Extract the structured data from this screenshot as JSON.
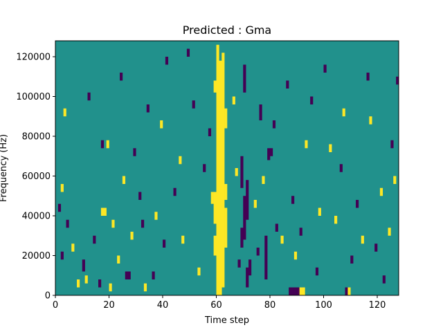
{
  "chart_data": {
    "type": "heatmap",
    "title": "Predicted : Gma",
    "xlabel": "Time step",
    "ylabel": "Frequency (Hz)",
    "xlim": [
      0,
      128
    ],
    "ylim": [
      0,
      128000
    ],
    "x_ticks": [
      0,
      20,
      40,
      60,
      80,
      100,
      120
    ],
    "y_ticks": [
      0,
      20000,
      40000,
      60000,
      80000,
      100000,
      120000
    ],
    "x_tick_labels": [
      "0",
      "20",
      "40",
      "60",
      "80",
      "100",
      "120"
    ],
    "y_tick_labels": [
      "0",
      "20000",
      "40000",
      "60000",
      "80000",
      "100000",
      "120000"
    ],
    "n_time_steps": 128,
    "n_freq_bins": 64,
    "freq_bin_width_hz": 2000,
    "color_levels": [
      "#440154",
      "#21918c",
      "#fde725"
    ],
    "value_scale": "-1 = low (dark purple), 0 = baseline (teal), 1 = high (yellow)",
    "background_value": 0,
    "cells_note": "Listed cells deviate from baseline; unlisted cells are 0.",
    "cells": [
      {
        "t": 60,
        "f0": 0,
        "f1": 126000,
        "v": 1
      },
      {
        "t": 61,
        "f0": 0,
        "f1": 118000,
        "v": 1
      },
      {
        "t": 62,
        "f0": 4000,
        "f1": 122000,
        "v": 1
      },
      {
        "t": 63,
        "f0": 24000,
        "f1": 44000,
        "v": 1
      },
      {
        "t": 63,
        "f0": 48000,
        "f1": 56000,
        "v": 1
      },
      {
        "t": 63,
        "f0": 84000,
        "f1": 94000,
        "v": 1
      },
      {
        "t": 59,
        "f0": 20000,
        "f1": 30000,
        "v": 1
      },
      {
        "t": 59,
        "f0": 36000,
        "f1": 52000,
        "v": 1
      },
      {
        "t": 59,
        "f0": 102000,
        "f1": 108000,
        "v": 1
      },
      {
        "t": 58,
        "f0": 46000,
        "f1": 52000,
        "v": 1
      },
      {
        "t": 68,
        "f0": 14000,
        "f1": 18000,
        "v": -1
      },
      {
        "t": 69,
        "f0": 24000,
        "f1": 34000,
        "v": -1
      },
      {
        "t": 69,
        "f0": 54000,
        "f1": 70000,
        "v": -1
      },
      {
        "t": 70,
        "f0": 28000,
        "f1": 50000,
        "v": -1
      },
      {
        "t": 70,
        "f0": 102000,
        "f1": 116000,
        "v": -1
      },
      {
        "t": 71,
        "f0": 4000,
        "f1": 14000,
        "v": -1
      },
      {
        "t": 71,
        "f0": 38000,
        "f1": 58000,
        "v": -1
      },
      {
        "t": 72,
        "f0": 10000,
        "f1": 18000,
        "v": -1
      },
      {
        "t": 78,
        "f0": 8000,
        "f1": 30000,
        "v": -1
      },
      {
        "t": 76,
        "f0": 88000,
        "f1": 96000,
        "v": -1
      },
      {
        "t": 79,
        "f0": 68000,
        "f1": 74000,
        "v": -1
      },
      {
        "t": 80,
        "f0": 70000,
        "f1": 74000,
        "v": -1
      },
      {
        "t": 87,
        "f0": 0,
        "f1": 4000,
        "v": -1
      },
      {
        "t": 88,
        "f0": 0,
        "f1": 4000,
        "v": -1
      },
      {
        "t": 89,
        "f0": 0,
        "f1": 4000,
        "v": -1
      },
      {
        "t": 90,
        "f0": 0,
        "f1": 4000,
        "v": -1
      },
      {
        "t": 91,
        "f0": 0,
        "f1": 4000,
        "v": 1
      },
      {
        "t": 92,
        "f0": 0,
        "f1": 4000,
        "v": 1
      },
      {
        "t": 108,
        "f0": 0,
        "f1": 4000,
        "v": -1
      },
      {
        "t": 109,
        "f0": 0,
        "f1": 4000,
        "v": 1
      },
      {
        "t": 1,
        "f0": 42000,
        "f1": 46000,
        "v": -1
      },
      {
        "t": 2,
        "f0": 18000,
        "f1": 22000,
        "v": -1
      },
      {
        "t": 2,
        "f0": 52000,
        "f1": 56000,
        "v": 1
      },
      {
        "t": 3,
        "f0": 90000,
        "f1": 94000,
        "v": 1
      },
      {
        "t": 4,
        "f0": 34000,
        "f1": 38000,
        "v": -1
      },
      {
        "t": 6,
        "f0": 22000,
        "f1": 26000,
        "v": 1
      },
      {
        "t": 8,
        "f0": 4000,
        "f1": 8000,
        "v": 1
      },
      {
        "t": 10,
        "f0": 12000,
        "f1": 18000,
        "v": -1
      },
      {
        "t": 11,
        "f0": 6000,
        "f1": 10000,
        "v": 1
      },
      {
        "t": 12,
        "f0": 98000,
        "f1": 102000,
        "v": -1
      },
      {
        "t": 14,
        "f0": 26000,
        "f1": 30000,
        "v": -1
      },
      {
        "t": 16,
        "f0": 4000,
        "f1": 8000,
        "v": -1
      },
      {
        "t": 17,
        "f0": 40000,
        "f1": 44000,
        "v": 1
      },
      {
        "t": 18,
        "f0": 40000,
        "f1": 44000,
        "v": 1
      },
      {
        "t": 17,
        "f0": 74000,
        "f1": 78000,
        "v": -1
      },
      {
        "t": 19,
        "f0": 74000,
        "f1": 78000,
        "v": 1
      },
      {
        "t": 20,
        "f0": 2000,
        "f1": 6000,
        "v": 1
      },
      {
        "t": 21,
        "f0": 34000,
        "f1": 38000,
        "v": 1
      },
      {
        "t": 23,
        "f0": 16000,
        "f1": 20000,
        "v": 1
      },
      {
        "t": 24,
        "f0": 108000,
        "f1": 112000,
        "v": -1
      },
      {
        "t": 25,
        "f0": 56000,
        "f1": 60000,
        "v": 1
      },
      {
        "t": 26,
        "f0": 8000,
        "f1": 12000,
        "v": -1
      },
      {
        "t": 27,
        "f0": 8000,
        "f1": 12000,
        "v": -1
      },
      {
        "t": 28,
        "f0": 28000,
        "f1": 32000,
        "v": 1
      },
      {
        "t": 29,
        "f0": 70000,
        "f1": 74000,
        "v": -1
      },
      {
        "t": 31,
        "f0": 48000,
        "f1": 52000,
        "v": -1
      },
      {
        "t": 32,
        "f0": 34000,
        "f1": 38000,
        "v": -1
      },
      {
        "t": 33,
        "f0": 2000,
        "f1": 6000,
        "v": 1
      },
      {
        "t": 34,
        "f0": 92000,
        "f1": 96000,
        "v": -1
      },
      {
        "t": 36,
        "f0": 8000,
        "f1": 12000,
        "v": -1
      },
      {
        "t": 37,
        "f0": 38000,
        "f1": 42000,
        "v": 1
      },
      {
        "t": 39,
        "f0": 84000,
        "f1": 88000,
        "v": 1
      },
      {
        "t": 40,
        "f0": 24000,
        "f1": 28000,
        "v": -1
      },
      {
        "t": 41,
        "f0": 116000,
        "f1": 120000,
        "v": -1
      },
      {
        "t": 44,
        "f0": 50000,
        "f1": 54000,
        "v": -1
      },
      {
        "t": 46,
        "f0": 66000,
        "f1": 70000,
        "v": 1
      },
      {
        "t": 47,
        "f0": 26000,
        "f1": 30000,
        "v": 1
      },
      {
        "t": 49,
        "f0": 120000,
        "f1": 124000,
        "v": -1
      },
      {
        "t": 51,
        "f0": 94000,
        "f1": 98000,
        "v": -1
      },
      {
        "t": 53,
        "f0": 10000,
        "f1": 14000,
        "v": 1
      },
      {
        "t": 55,
        "f0": 62000,
        "f1": 66000,
        "v": -1
      },
      {
        "t": 57,
        "f0": 80000,
        "f1": 84000,
        "v": -1
      },
      {
        "t": 66,
        "f0": 96000,
        "f1": 100000,
        "v": 1
      },
      {
        "t": 67,
        "f0": 60000,
        "f1": 64000,
        "v": 1
      },
      {
        "t": 74,
        "f0": 44000,
        "f1": 48000,
        "v": 1
      },
      {
        "t": 75,
        "f0": 20000,
        "f1": 24000,
        "v": -1
      },
      {
        "t": 77,
        "f0": 56000,
        "f1": 60000,
        "v": 1
      },
      {
        "t": 81,
        "f0": 84000,
        "f1": 88000,
        "v": -1
      },
      {
        "t": 82,
        "f0": 32000,
        "f1": 36000,
        "v": -1
      },
      {
        "t": 84,
        "f0": 26000,
        "f1": 30000,
        "v": 1
      },
      {
        "t": 86,
        "f0": 104000,
        "f1": 108000,
        "v": -1
      },
      {
        "t": 88,
        "f0": 46000,
        "f1": 50000,
        "v": -1
      },
      {
        "t": 89,
        "f0": 18000,
        "f1": 22000,
        "v": 1
      },
      {
        "t": 91,
        "f0": 30000,
        "f1": 34000,
        "v": -1
      },
      {
        "t": 93,
        "f0": 74000,
        "f1": 78000,
        "v": 1
      },
      {
        "t": 95,
        "f0": 96000,
        "f1": 100000,
        "v": -1
      },
      {
        "t": 97,
        "f0": 10000,
        "f1": 14000,
        "v": -1
      },
      {
        "t": 98,
        "f0": 40000,
        "f1": 44000,
        "v": 1
      },
      {
        "t": 100,
        "f0": 112000,
        "f1": 116000,
        "v": -1
      },
      {
        "t": 102,
        "f0": 72000,
        "f1": 76000,
        "v": 1
      },
      {
        "t": 104,
        "f0": 36000,
        "f1": 40000,
        "v": 1
      },
      {
        "t": 106,
        "f0": 62000,
        "f1": 66000,
        "v": -1
      },
      {
        "t": 107,
        "f0": 90000,
        "f1": 94000,
        "v": 1
      },
      {
        "t": 110,
        "f0": 16000,
        "f1": 20000,
        "v": -1
      },
      {
        "t": 112,
        "f0": 44000,
        "f1": 48000,
        "v": -1
      },
      {
        "t": 114,
        "f0": 26000,
        "f1": 30000,
        "v": 1
      },
      {
        "t": 116,
        "f0": 108000,
        "f1": 112000,
        "v": -1
      },
      {
        "t": 117,
        "f0": 86000,
        "f1": 90000,
        "v": 1
      },
      {
        "t": 119,
        "f0": 22000,
        "f1": 26000,
        "v": -1
      },
      {
        "t": 121,
        "f0": 50000,
        "f1": 54000,
        "v": 1
      },
      {
        "t": 122,
        "f0": 6000,
        "f1": 10000,
        "v": -1
      },
      {
        "t": 124,
        "f0": 30000,
        "f1": 34000,
        "v": 1
      },
      {
        "t": 125,
        "f0": 74000,
        "f1": 78000,
        "v": -1
      },
      {
        "t": 126,
        "f0": 56000,
        "f1": 60000,
        "v": 1
      },
      {
        "t": 127,
        "f0": 106000,
        "f1": 110000,
        "v": -1
      }
    ]
  }
}
